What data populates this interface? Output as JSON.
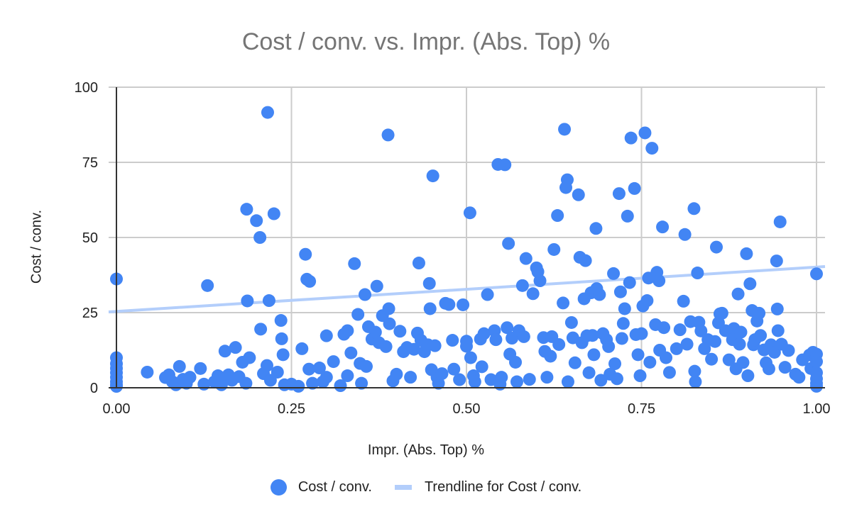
{
  "chart": {
    "title": "Cost / conv. vs. Impr. (Abs. Top) %",
    "x_axis_label": "Impr. (Abs. Top) %",
    "y_axis_label": "Cost / conv.",
    "legend": [
      {
        "label": "Cost / conv.",
        "symbol": "circle",
        "color": "#4285F4"
      },
      {
        "label": "Trendline for Cost / conv.",
        "symbol": "line",
        "color": "#B3CEFB"
      }
    ],
    "colors": {
      "points": "#4285F4",
      "trendline": "#B3CEFB",
      "grid": "#CCCCCC",
      "axis": "#333333",
      "title": "#757575"
    }
  },
  "chart_data": {
    "type": "scatter",
    "title": "Cost / conv. vs. Impr. (Abs. Top) %",
    "xlabel": "Impr. (Abs. Top) %",
    "ylabel": "Cost / conv.",
    "xlim": [
      0,
      1
    ],
    "ylim": [
      0,
      100
    ],
    "x_ticks": [
      "0.00",
      "0.25",
      "0.50",
      "0.75",
      "1.00"
    ],
    "y_ticks": [
      "0",
      "25",
      "50",
      "75",
      "100"
    ],
    "grid": true,
    "legend_position": "bottom",
    "trendline": {
      "type": "linear",
      "x": [
        0,
        1
      ],
      "y": [
        25.3,
        40.3
      ]
    },
    "series": [
      {
        "name": "Cost / conv.",
        "points": [
          [
            0.0,
            36.2
          ],
          [
            0.0,
            10.0
          ],
          [
            0.0,
            8.0
          ],
          [
            0.0,
            6.5
          ],
          [
            0.0,
            5.0
          ],
          [
            0.0,
            3.5
          ],
          [
            0.0,
            2.0
          ],
          [
            0.0,
            1.0
          ],
          [
            0.0,
            0.3
          ],
          [
            0.044,
            5.2
          ],
          [
            0.07,
            3.4
          ],
          [
            0.075,
            4.3
          ],
          [
            0.08,
            2.0
          ],
          [
            0.085,
            1.0
          ],
          [
            0.09,
            7.1
          ],
          [
            0.095,
            2.8
          ],
          [
            0.1,
            1.5
          ],
          [
            0.105,
            3.5
          ],
          [
            0.12,
            6.4
          ],
          [
            0.125,
            1.2
          ],
          [
            0.13,
            34.0
          ],
          [
            0.14,
            2.0
          ],
          [
            0.145,
            4.0
          ],
          [
            0.15,
            1.0
          ],
          [
            0.155,
            12.2
          ],
          [
            0.16,
            4.3
          ],
          [
            0.165,
            2.5
          ],
          [
            0.17,
            13.4
          ],
          [
            0.175,
            3.7
          ],
          [
            0.18,
            8.5
          ],
          [
            0.185,
            1.5
          ],
          [
            0.186,
            59.4
          ],
          [
            0.187,
            28.9
          ],
          [
            0.19,
            10.0
          ],
          [
            0.2,
            55.6
          ],
          [
            0.205,
            50.0
          ],
          [
            0.206,
            19.5
          ],
          [
            0.21,
            4.7
          ],
          [
            0.215,
            7.4
          ],
          [
            0.216,
            91.6
          ],
          [
            0.218,
            29.0
          ],
          [
            0.22,
            2.5
          ],
          [
            0.225,
            57.9
          ],
          [
            0.23,
            5.2
          ],
          [
            0.235,
            22.4
          ],
          [
            0.236,
            16.3
          ],
          [
            0.238,
            11.0
          ],
          [
            0.24,
            1.0
          ],
          [
            0.25,
            1.2
          ],
          [
            0.26,
            0.5
          ],
          [
            0.265,
            13.0
          ],
          [
            0.27,
            44.4
          ],
          [
            0.272,
            36.1
          ],
          [
            0.275,
            6.2
          ],
          [
            0.276,
            35.4
          ],
          [
            0.28,
            1.5
          ],
          [
            0.29,
            6.6
          ],
          [
            0.295,
            2.0
          ],
          [
            0.3,
            3.5
          ],
          [
            0.3,
            17.3
          ],
          [
            0.31,
            8.7
          ],
          [
            0.32,
            0.7
          ],
          [
            0.325,
            17.8
          ],
          [
            0.33,
            19.0
          ],
          [
            0.33,
            4.0
          ],
          [
            0.335,
            11.6
          ],
          [
            0.34,
            41.3
          ],
          [
            0.345,
            24.4
          ],
          [
            0.348,
            8.1
          ],
          [
            0.35,
            1.5
          ],
          [
            0.355,
            31.0
          ],
          [
            0.357,
            7.1
          ],
          [
            0.36,
            20.3
          ],
          [
            0.365,
            16.2
          ],
          [
            0.37,
            18.5
          ],
          [
            0.372,
            33.8
          ],
          [
            0.375,
            15.0
          ],
          [
            0.38,
            24.0
          ],
          [
            0.385,
            13.7
          ],
          [
            0.388,
            84.1
          ],
          [
            0.389,
            26.3
          ],
          [
            0.39,
            21.3
          ],
          [
            0.395,
            2.3
          ],
          [
            0.4,
            4.5
          ],
          [
            0.405,
            18.8
          ],
          [
            0.41,
            12.0
          ],
          [
            0.415,
            13.4
          ],
          [
            0.42,
            3.5
          ],
          [
            0.425,
            12.8
          ],
          [
            0.43,
            18.2
          ],
          [
            0.432,
            41.5
          ],
          [
            0.435,
            15.8
          ],
          [
            0.44,
            12.0
          ],
          [
            0.445,
            14.3
          ],
          [
            0.447,
            34.7
          ],
          [
            0.448,
            26.3
          ],
          [
            0.45,
            6.0
          ],
          [
            0.452,
            70.5
          ],
          [
            0.455,
            14.0
          ],
          [
            0.458,
            3.5
          ],
          [
            0.46,
            1.5
          ],
          [
            0.465,
            4.7
          ],
          [
            0.47,
            28.1
          ],
          [
            0.475,
            27.7
          ],
          [
            0.48,
            15.8
          ],
          [
            0.482,
            6.2
          ],
          [
            0.49,
            2.7
          ],
          [
            0.495,
            27.6
          ],
          [
            0.5,
            15.5
          ],
          [
            0.5,
            13.8
          ],
          [
            0.505,
            58.2
          ],
          [
            0.506,
            10.0
          ],
          [
            0.51,
            4.0
          ],
          [
            0.512,
            2.0
          ],
          [
            0.52,
            16.2
          ],
          [
            0.522,
            7.0
          ],
          [
            0.525,
            18.0
          ],
          [
            0.53,
            31.0
          ],
          [
            0.535,
            2.7
          ],
          [
            0.54,
            19.0
          ],
          [
            0.542,
            16.0
          ],
          [
            0.545,
            74.3
          ],
          [
            0.548,
            1.2
          ],
          [
            0.55,
            3.5
          ],
          [
            0.555,
            74.2
          ],
          [
            0.558,
            20.0
          ],
          [
            0.56,
            48.0
          ],
          [
            0.562,
            11.2
          ],
          [
            0.565,
            16.5
          ],
          [
            0.57,
            8.5
          ],
          [
            0.572,
            2.0
          ],
          [
            0.575,
            19.0
          ],
          [
            0.58,
            34.0
          ],
          [
            0.582,
            17.0
          ],
          [
            0.585,
            43.0
          ],
          [
            0.59,
            2.8
          ],
          [
            0.595,
            31.3
          ],
          [
            0.6,
            39.9
          ],
          [
            0.602,
            38.6
          ],
          [
            0.605,
            35.6
          ],
          [
            0.61,
            16.7
          ],
          [
            0.612,
            12.1
          ],
          [
            0.615,
            3.5
          ],
          [
            0.62,
            10.5
          ],
          [
            0.622,
            17.0
          ],
          [
            0.625,
            46.0
          ],
          [
            0.63,
            57.3
          ],
          [
            0.632,
            14.4
          ],
          [
            0.638,
            28.2
          ],
          [
            0.64,
            86.0
          ],
          [
            0.642,
            66.6
          ],
          [
            0.644,
            69.2
          ],
          [
            0.645,
            2.0
          ],
          [
            0.65,
            21.7
          ],
          [
            0.652,
            16.6
          ],
          [
            0.655,
            8.3
          ],
          [
            0.66,
            64.2
          ],
          [
            0.662,
            43.4
          ],
          [
            0.665,
            15.0
          ],
          [
            0.668,
            29.6
          ],
          [
            0.67,
            42.3
          ],
          [
            0.672,
            17.3
          ],
          [
            0.675,
            5.0
          ],
          [
            0.678,
            31.6
          ],
          [
            0.68,
            17.4
          ],
          [
            0.682,
            11.0
          ],
          [
            0.685,
            53.0
          ],
          [
            0.686,
            33.0
          ],
          [
            0.69,
            31.0
          ],
          [
            0.692,
            2.5
          ],
          [
            0.695,
            18.0
          ],
          [
            0.7,
            16.0
          ],
          [
            0.703,
            13.7
          ],
          [
            0.705,
            4.5
          ],
          [
            0.71,
            38.0
          ],
          [
            0.712,
            8.0
          ],
          [
            0.715,
            3.0
          ],
          [
            0.718,
            64.6
          ],
          [
            0.72,
            31.9
          ],
          [
            0.722,
            16.4
          ],
          [
            0.724,
            21.4
          ],
          [
            0.726,
            26.3
          ],
          [
            0.73,
            57.1
          ],
          [
            0.733,
            35.0
          ],
          [
            0.735,
            83.1
          ],
          [
            0.74,
            66.3
          ],
          [
            0.742,
            17.7
          ],
          [
            0.745,
            11.0
          ],
          [
            0.748,
            4.0
          ],
          [
            0.75,
            18.0
          ],
          [
            0.752,
            27.2
          ],
          [
            0.755,
            84.8
          ],
          [
            0.758,
            29.0
          ],
          [
            0.76,
            36.5
          ],
          [
            0.762,
            8.5
          ],
          [
            0.765,
            79.7
          ],
          [
            0.77,
            21.0
          ],
          [
            0.772,
            38.4
          ],
          [
            0.775,
            35.6
          ],
          [
            0.776,
            12.5
          ],
          [
            0.78,
            53.5
          ],
          [
            0.782,
            20.0
          ],
          [
            0.785,
            10.0
          ],
          [
            0.79,
            5.1
          ],
          [
            0.8,
            13.0
          ],
          [
            0.805,
            19.3
          ],
          [
            0.81,
            28.8
          ],
          [
            0.812,
            51.0
          ],
          [
            0.815,
            14.5
          ],
          [
            0.82,
            22.0
          ],
          [
            0.825,
            59.6
          ],
          [
            0.826,
            5.5
          ],
          [
            0.827,
            2.0
          ],
          [
            0.83,
            38.2
          ],
          [
            0.832,
            21.8
          ],
          [
            0.835,
            18.9
          ],
          [
            0.84,
            13.0
          ],
          [
            0.845,
            16.0
          ],
          [
            0.85,
            9.5
          ],
          [
            0.855,
            15.4
          ],
          [
            0.857,
            46.8
          ],
          [
            0.86,
            21.6
          ],
          [
            0.862,
            24.6
          ],
          [
            0.865,
            24.8
          ],
          [
            0.87,
            19.0
          ],
          [
            0.875,
            9.3
          ],
          [
            0.88,
            16.0
          ],
          [
            0.882,
            19.7
          ],
          [
            0.885,
            6.3
          ],
          [
            0.888,
            31.2
          ],
          [
            0.89,
            14.5
          ],
          [
            0.892,
            18.5
          ],
          [
            0.895,
            8.4
          ],
          [
            0.9,
            44.6
          ],
          [
            0.902,
            4.0
          ],
          [
            0.905,
            34.6
          ],
          [
            0.908,
            25.7
          ],
          [
            0.91,
            14.3
          ],
          [
            0.912,
            16.0
          ],
          [
            0.915,
            22.2
          ],
          [
            0.918,
            24.8
          ],
          [
            0.92,
            17.4
          ],
          [
            0.925,
            12.6
          ],
          [
            0.928,
            8.3
          ],
          [
            0.932,
            6.3
          ],
          [
            0.935,
            14.3
          ],
          [
            0.94,
            11.8
          ],
          [
            0.943,
            42.2
          ],
          [
            0.944,
            26.2
          ],
          [
            0.945,
            19.0
          ],
          [
            0.948,
            55.2
          ],
          [
            0.95,
            14.5
          ],
          [
            0.955,
            6.8
          ],
          [
            0.96,
            12.4
          ],
          [
            0.97,
            4.5
          ],
          [
            0.975,
            3.5
          ],
          [
            0.98,
            9.3
          ],
          [
            0.99,
            10.9
          ],
          [
            0.992,
            6.4
          ],
          [
            0.995,
            11.8
          ],
          [
            1.0,
            37.9
          ],
          [
            1.0,
            11.2
          ],
          [
            1.0,
            8.7
          ],
          [
            1.0,
            5.0
          ],
          [
            1.0,
            3.0
          ],
          [
            1.0,
            1.5
          ],
          [
            1.0,
            0.5
          ]
        ]
      }
    ]
  }
}
